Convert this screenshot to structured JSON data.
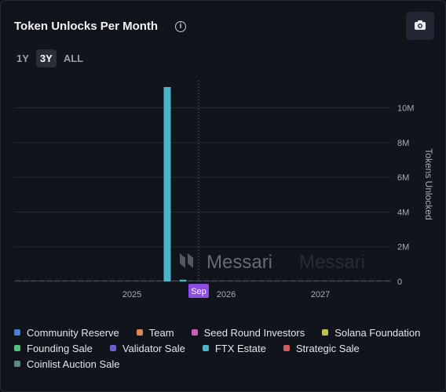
{
  "header": {
    "title": "Token Unlocks Per Month",
    "info_icon": "info-icon",
    "camera_icon": "camera-icon"
  },
  "range_tabs": [
    "1Y",
    "3Y",
    "ALL"
  ],
  "active_range": "3Y",
  "watermark": "Messari",
  "chart_data": {
    "type": "bar",
    "ylabel": "Tokens Unlocked",
    "ylim": [
      0,
      11200000
    ],
    "yticks": [
      0,
      2000000,
      4000000,
      6000000,
      8000000,
      10000000
    ],
    "ytick_labels": [
      "0",
      "2M",
      "4M",
      "6M",
      "8M",
      "10M"
    ],
    "xticks": [
      {
        "month": "2025-01",
        "label": "2025"
      },
      {
        "month": "2026-01",
        "label": "2026"
      },
      {
        "month": "2027-01",
        "label": "2027"
      }
    ],
    "current_marker": {
      "month": "2025-09",
      "label": "Sep"
    },
    "months": [
      "2023-10",
      "2023-11",
      "2023-12",
      "2024-01",
      "2024-02",
      "2024-03",
      "2024-04",
      "2024-05",
      "2024-06",
      "2024-07",
      "2024-08",
      "2024-09",
      "2024-10",
      "2024-11",
      "2024-12",
      "2025-01",
      "2025-02",
      "2025-03",
      "2025-04",
      "2025-05",
      "2025-06",
      "2025-07",
      "2025-08",
      "2025-09",
      "2025-10",
      "2025-11",
      "2025-12",
      "2026-01",
      "2026-02",
      "2026-03",
      "2026-04",
      "2026-05",
      "2026-06",
      "2026-07",
      "2026-08",
      "2026-09",
      "2026-10",
      "2026-11",
      "2026-12",
      "2027-01",
      "2027-02",
      "2027-03",
      "2027-04",
      "2027-05",
      "2027-06",
      "2027-07",
      "2027-08",
      "2027-09"
    ],
    "series": [
      {
        "name": "FTX Estate",
        "values": [
          0,
          0,
          0,
          0,
          0,
          0,
          0,
          0,
          0,
          0,
          0,
          0,
          0,
          0,
          0,
          0,
          0,
          0,
          0,
          11200000,
          0,
          100000,
          0,
          0,
          0,
          0,
          0,
          0,
          0,
          0,
          0,
          0,
          0,
          0,
          0,
          0,
          0,
          0,
          0,
          0,
          0,
          0,
          0,
          0,
          0,
          0,
          0,
          0
        ]
      }
    ],
    "legend": [
      {
        "name": "Community Reserve",
        "color": "#4a7fd4"
      },
      {
        "name": "Team",
        "color": "#d98a5b"
      },
      {
        "name": "Seed Round Investors",
        "color": "#c95fb0"
      },
      {
        "name": "Solana Foundation",
        "color": "#b9c34a"
      },
      {
        "name": "Founding Sale",
        "color": "#4fc27a"
      },
      {
        "name": "Validator Sale",
        "color": "#6b5fd1"
      },
      {
        "name": "FTX Estate",
        "color": "#4bb4c8"
      },
      {
        "name": "Strategic Sale",
        "color": "#d65a5a"
      },
      {
        "name": "Coinlist Auction Sale",
        "color": "#5b8a86"
      }
    ],
    "colors": {
      "grid": "#252a33",
      "axis_text": "#a8adb6",
      "marker": "#8a4fe0",
      "baseline_bar": "#3b4552"
    }
  }
}
